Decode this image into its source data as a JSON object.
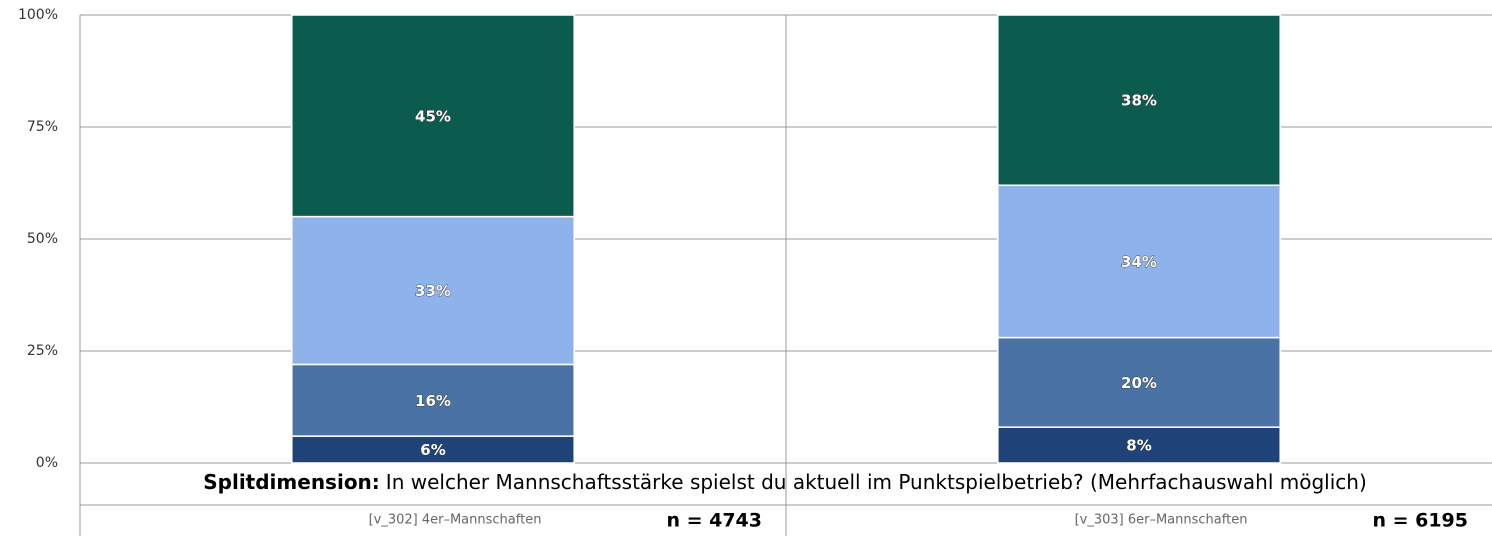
{
  "chart_data": {
    "type": "stacked_bar",
    "categories": [
      "[v_302] 4er–Mannschaften",
      "[v_303] 6er–Mannschaften"
    ],
    "series": [
      {
        "color": "#1f4379",
        "values": [
          6,
          8
        ],
        "value_labels": [
          "6%",
          "8%"
        ]
      },
      {
        "color": "#4a72a5",
        "values": [
          16,
          20
        ],
        "value_labels": [
          "16%",
          "20%"
        ]
      },
      {
        "color": "#8db3ea",
        "values": [
          33,
          34
        ],
        "value_labels": [
          "33%",
          "34%"
        ]
      },
      {
        "color": "#0b5c4f",
        "values": [
          45,
          38
        ],
        "value_labels": [
          "45%",
          "38%"
        ]
      }
    ],
    "ylim": [
      0,
      100
    ],
    "yticks": [
      {
        "value": 0,
        "label": "0%"
      },
      {
        "value": 25,
        "label": "25%"
      },
      {
        "value": 50,
        "label": "50%"
      },
      {
        "value": 75,
        "label": "75%"
      },
      {
        "value": 100,
        "label": "100%"
      }
    ],
    "grid": true,
    "split_label": "Splitdimension:",
    "split_text": "In welcher Mannschaftsstärke spielst du aktuell im Punktspielbetrieb? (Mehrfachauswahl möglich)",
    "n_labels": [
      "n = 4743",
      "n = 6195"
    ]
  }
}
